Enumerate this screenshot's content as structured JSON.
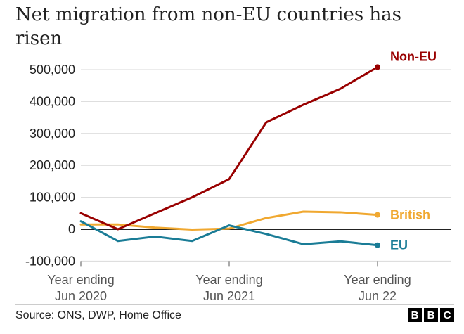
{
  "title": "Net migration from non-EU countries has risen",
  "source": "Source: ONS, DWP, Home Office",
  "logo_text": "BBC",
  "chart_data": {
    "type": "line",
    "title": "Net migration from non-EU countries has risen",
    "x": [
      0,
      1,
      2,
      3,
      4,
      5,
      6,
      7,
      8
    ],
    "x_ticks": [
      {
        "pos": 0,
        "line1": "Year ending",
        "line2": "Jun 2020"
      },
      {
        "pos": 4,
        "line1": "Year ending",
        "line2": "Jun 2021"
      },
      {
        "pos": 8,
        "line1": "Year ending",
        "line2": "Jun 22"
      }
    ],
    "y_ticks": [
      {
        "value": 500000,
        "label": "500,000"
      },
      {
        "value": 400000,
        "label": "400,000"
      },
      {
        "value": 300000,
        "label": "300,000"
      },
      {
        "value": 200000,
        "label": "200,000"
      },
      {
        "value": 100000,
        "label": "100,000"
      },
      {
        "value": 0,
        "label": "0"
      },
      {
        "value": -100000,
        "label": "-100,000"
      }
    ],
    "ylim": [
      -100000,
      500000
    ],
    "grid": true,
    "series": [
      {
        "name": "Non-EU",
        "color": "#990000",
        "values": [
          50000,
          0,
          50000,
          100000,
          157000,
          335000,
          390000,
          440000,
          508000
        ]
      },
      {
        "name": "British",
        "color": "#f0a830",
        "values": [
          15000,
          15000,
          5000,
          -1000,
          2000,
          35000,
          55000,
          53000,
          45000
        ]
      },
      {
        "name": "EU",
        "color": "#1a7c96",
        "values": [
          25000,
          -37000,
          -23000,
          -37000,
          12000,
          -15000,
          -47000,
          -38000,
          -50000
        ]
      }
    ]
  }
}
